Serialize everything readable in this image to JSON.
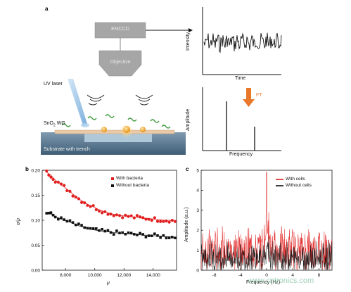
{
  "panel_a": {
    "label": "a",
    "emccd_label": "EMCCD",
    "objective_label": "Objective",
    "uv_laser_label": "UV laser",
    "waveguide_label_prefix": "SnO",
    "waveguide_label_sub": "2",
    "waveguide_label_suffix": " WG",
    "substrate_label": "Substrate with trench",
    "intensity_plot": {
      "ylabel": "Intensity",
      "xlabel": "Time"
    },
    "amplitude_plot": {
      "ylabel": "Amplitude",
      "xlabel": "Frequency",
      "arrow_label": "FT"
    },
    "colors": {
      "ft_arrow": "#e8792b",
      "box_fill": "#a8a8a8",
      "particle": "#f0a030",
      "waveguide": "#e9c9a8",
      "substrate": "#5f7f96",
      "bacteria": "#3a9a3a"
    }
  },
  "panel_b": {
    "label": "b",
    "chart_data": {
      "type": "scatter",
      "xlabel": "μ",
      "ylabel": "σ/μ",
      "xlim": [
        6400,
        15600
      ],
      "ylim": [
        0.0,
        0.2
      ],
      "xticks": [
        "8,000",
        "10,000",
        "12,000",
        "14,000"
      ],
      "yticks": [
        "0.00",
        "0.05",
        "0.10",
        "0.15",
        "0.20"
      ],
      "legend_position": "top-right",
      "series": [
        {
          "name": "With bacteria",
          "color": "#e01f1f",
          "x": [
            6700,
            6850,
            7000,
            7150,
            7300,
            7500,
            7700,
            7900,
            8100,
            8300,
            8500,
            8700,
            8900,
            9100,
            9300,
            9500,
            9700,
            9900,
            10100,
            10300,
            10500,
            10700,
            10900,
            11100,
            11300,
            11500,
            11700,
            11900,
            12100,
            12300,
            12500,
            12700,
            12900,
            13100,
            13300,
            13500,
            13700,
            13900,
            14100,
            14300,
            14500,
            14700,
            14900,
            15100,
            15300,
            15500
          ],
          "y": [
            0.196,
            0.193,
            0.19,
            0.185,
            0.18,
            0.176,
            0.17,
            0.167,
            0.162,
            0.158,
            0.152,
            0.148,
            0.143,
            0.139,
            0.136,
            0.132,
            0.129,
            0.127,
            0.124,
            0.121,
            0.119,
            0.116,
            0.115,
            0.113,
            0.112,
            0.111,
            0.11,
            0.109,
            0.108,
            0.108,
            0.107,
            0.106,
            0.106,
            0.105,
            0.104,
            0.104,
            0.103,
            0.103,
            0.102,
            0.101,
            0.101,
            0.1,
            0.1,
            0.1,
            0.099,
            0.098
          ],
          "fit": true
        },
        {
          "name": "Without bacteria",
          "color": "#111111",
          "x": [
            6700,
            6850,
            7000,
            7150,
            7300,
            7500,
            7700,
            7900,
            8100,
            8300,
            8500,
            8700,
            8900,
            9100,
            9300,
            9500,
            9700,
            9900,
            10100,
            10300,
            10500,
            10700,
            10900,
            11100,
            11300,
            11500,
            11700,
            11900,
            12100,
            12300,
            12500,
            12700,
            12900,
            13100,
            13300,
            13500,
            13700,
            13900,
            14100,
            14300,
            14500,
            14700,
            14900,
            15100,
            15300,
            15500
          ],
          "y": [
            0.115,
            0.114,
            0.112,
            0.11,
            0.107,
            0.105,
            0.102,
            0.1,
            0.098,
            0.096,
            0.094,
            0.091,
            0.089,
            0.087,
            0.086,
            0.084,
            0.082,
            0.081,
            0.08,
            0.079,
            0.078,
            0.077,
            0.077,
            0.076,
            0.075,
            0.075,
            0.074,
            0.074,
            0.073,
            0.073,
            0.072,
            0.072,
            0.071,
            0.071,
            0.07,
            0.07,
            0.07,
            0.069,
            0.069,
            0.068,
            0.068,
            0.068,
            0.067,
            0.067,
            0.066,
            0.066
          ],
          "fit": true
        }
      ]
    }
  },
  "panel_c": {
    "label": "c",
    "chart_data": {
      "type": "line",
      "xlabel": "Frequency (Hz)",
      "ylabel": "Amplitude (a.u.)",
      "xlim": [
        -10,
        10
      ],
      "ylim": [
        0,
        5
      ],
      "xticks": [
        "-8",
        "-4",
        "0",
        "4",
        "8"
      ],
      "yticks": [
        "0",
        "1",
        "2",
        "3",
        "4",
        "5"
      ],
      "legend_position": "top-right",
      "series": [
        {
          "name": "With cells",
          "color": "#e01f1f",
          "baseline": 0.9,
          "noise": 1.0,
          "peak_at": 0,
          "peak_value": 4.9
        },
        {
          "name": "Without cells",
          "color": "#111111",
          "baseline": 0.55,
          "noise": 0.7,
          "peak_at": 0,
          "peak_value": 1.2
        }
      ]
    }
  },
  "watermark": "www.cntronics.com"
}
